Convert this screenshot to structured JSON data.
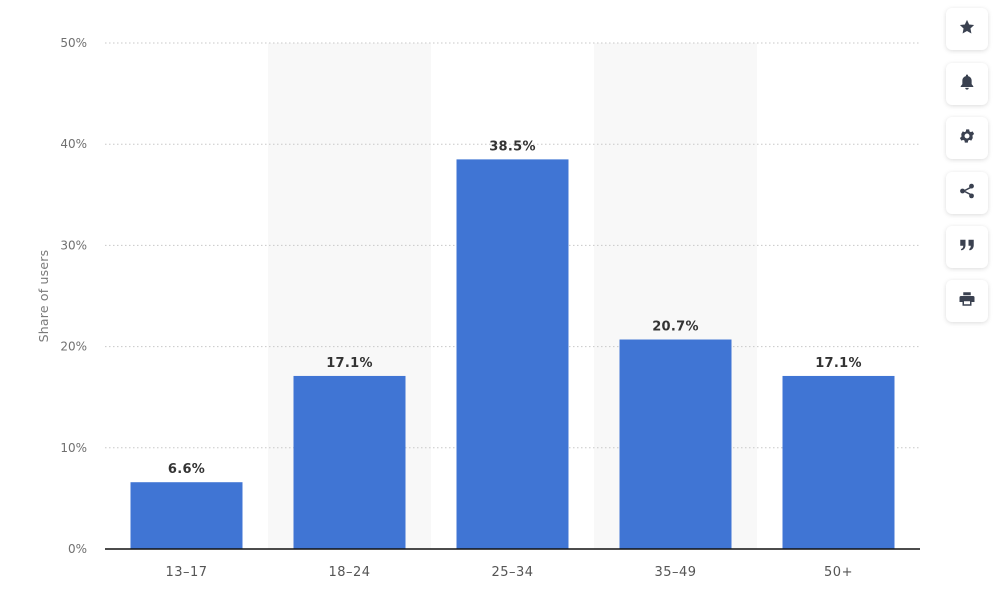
{
  "chart_data": {
    "type": "bar",
    "categories": [
      "13-17",
      "18-24",
      "25-34",
      "35-49",
      "50+"
    ],
    "values": [
      6.6,
      17.1,
      38.5,
      20.7,
      17.1
    ],
    "data_labels": [
      "6.6%",
      "17.1%",
      "38.5%",
      "20.7%",
      "17.1%"
    ],
    "title": "",
    "xlabel": "",
    "ylabel": "Share of users",
    "ylim": [
      0,
      50
    ],
    "yticks": [
      0,
      10,
      20,
      30,
      40,
      50
    ],
    "ytick_labels": [
      "0%",
      "10%",
      "20%",
      "30%",
      "40%",
      "50%"
    ],
    "bar_color": "#4075d4",
    "grid": true,
    "legend": "none"
  },
  "toolbar": {
    "buttons": [
      {
        "name": "favorite-button",
        "icon": "star-icon"
      },
      {
        "name": "notification-button",
        "icon": "bell-icon"
      },
      {
        "name": "settings-button",
        "icon": "gear-icon"
      },
      {
        "name": "share-button",
        "icon": "share-icon"
      },
      {
        "name": "cite-button",
        "icon": "quote-icon"
      },
      {
        "name": "print-button",
        "icon": "print-icon"
      }
    ]
  }
}
